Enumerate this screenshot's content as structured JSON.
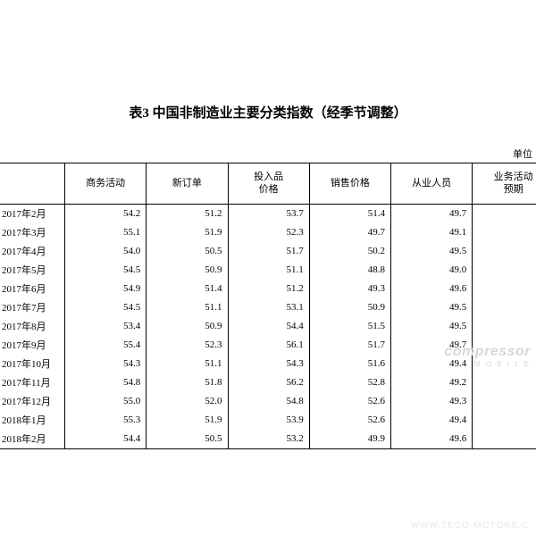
{
  "title": "表3 中国非制造业主要分类指数（经季节调整）",
  "unit_label": "单位",
  "columns": [
    "商务活动",
    "新订单",
    "投入品\n价格",
    "销售价格",
    "从业人员",
    "业务活动\n预期"
  ],
  "rows": [
    {
      "label": "2017年2月",
      "v": [
        "54.2",
        "51.2",
        "53.7",
        "51.4",
        "49.7",
        ""
      ]
    },
    {
      "label": "2017年3月",
      "v": [
        "55.1",
        "51.9",
        "52.3",
        "49.7",
        "49.1",
        ""
      ]
    },
    {
      "label": "2017年4月",
      "v": [
        "54.0",
        "50.5",
        "51.7",
        "50.2",
        "49.5",
        ""
      ]
    },
    {
      "label": "2017年5月",
      "v": [
        "54.5",
        "50.9",
        "51.1",
        "48.8",
        "49.0",
        ""
      ]
    },
    {
      "label": "2017年6月",
      "v": [
        "54.9",
        "51.4",
        "51.2",
        "49.3",
        "49.6",
        ""
      ]
    },
    {
      "label": "2017年7月",
      "v": [
        "54.5",
        "51.1",
        "53.1",
        "50.9",
        "49.5",
        ""
      ]
    },
    {
      "label": "2017年8月",
      "v": [
        "53.4",
        "50.9",
        "54.4",
        "51.5",
        "49.5",
        ""
      ]
    },
    {
      "label": "2017年9月",
      "v": [
        "55.4",
        "52.3",
        "56.1",
        "51.7",
        "49.7",
        ""
      ]
    },
    {
      "label": "2017年10月",
      "v": [
        "54.3",
        "51.1",
        "54.3",
        "51.6",
        "49.4",
        ""
      ]
    },
    {
      "label": "2017年11月",
      "v": [
        "54.8",
        "51.8",
        "56.2",
        "52.8",
        "49.2",
        ""
      ]
    },
    {
      "label": "2017年12月",
      "v": [
        "55.0",
        "52.0",
        "54.8",
        "52.6",
        "49.3",
        ""
      ]
    },
    {
      "label": "2018年1月",
      "v": [
        "55.3",
        "51.9",
        "53.9",
        "52.6",
        "49.4",
        ""
      ]
    },
    {
      "label": "2018年2月",
      "v": [
        "54.4",
        "50.5",
        "53.2",
        "49.9",
        "49.6",
        ""
      ]
    }
  ],
  "col_widths": [
    "70px",
    "88px",
    "88px",
    "88px",
    "88px",
    "88px",
    "88px"
  ],
  "watermark1_main": "compressor",
  "watermark1_sub": "M O B I L E",
  "watermark2": "WWW.TECO-MOTORS.C"
}
